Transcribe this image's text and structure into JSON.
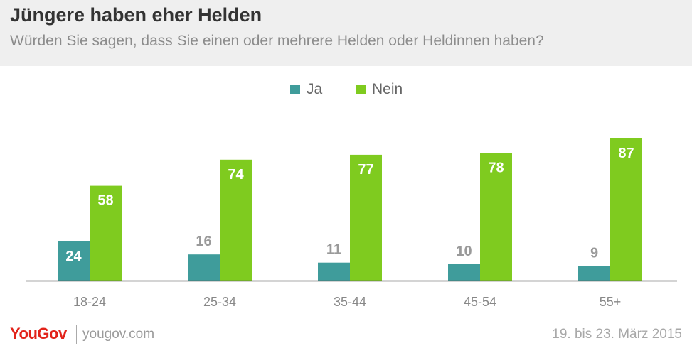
{
  "header": {
    "title": "Jüngere haben eher Helden",
    "subtitle": "Würden Sie sagen, dass Sie einen oder mehrere Helden oder Heldinnen haben?"
  },
  "footer": {
    "logo": "YouGov",
    "url": "yougov.com",
    "date": "19. bis 23. März 2015"
  },
  "chart_data": {
    "type": "bar",
    "categories": [
      "18-24",
      "25-34",
      "35-44",
      "45-54",
      "55+"
    ],
    "series": [
      {
        "name": "Ja",
        "color": "#3f9c9b",
        "values": [
          24,
          16,
          11,
          10,
          9
        ]
      },
      {
        "name": "Nein",
        "color": "#7fcb1f",
        "values": [
          58,
          74,
          77,
          78,
          87
        ]
      }
    ],
    "title": "Jüngere haben eher Helden",
    "subtitle": "Würden Sie sagen, dass Sie einen oder mehrere Helden oder Heldinnen haben?",
    "ylim": [
      0,
      100
    ],
    "grid": false,
    "legend": "top-center",
    "data_labels": true
  }
}
